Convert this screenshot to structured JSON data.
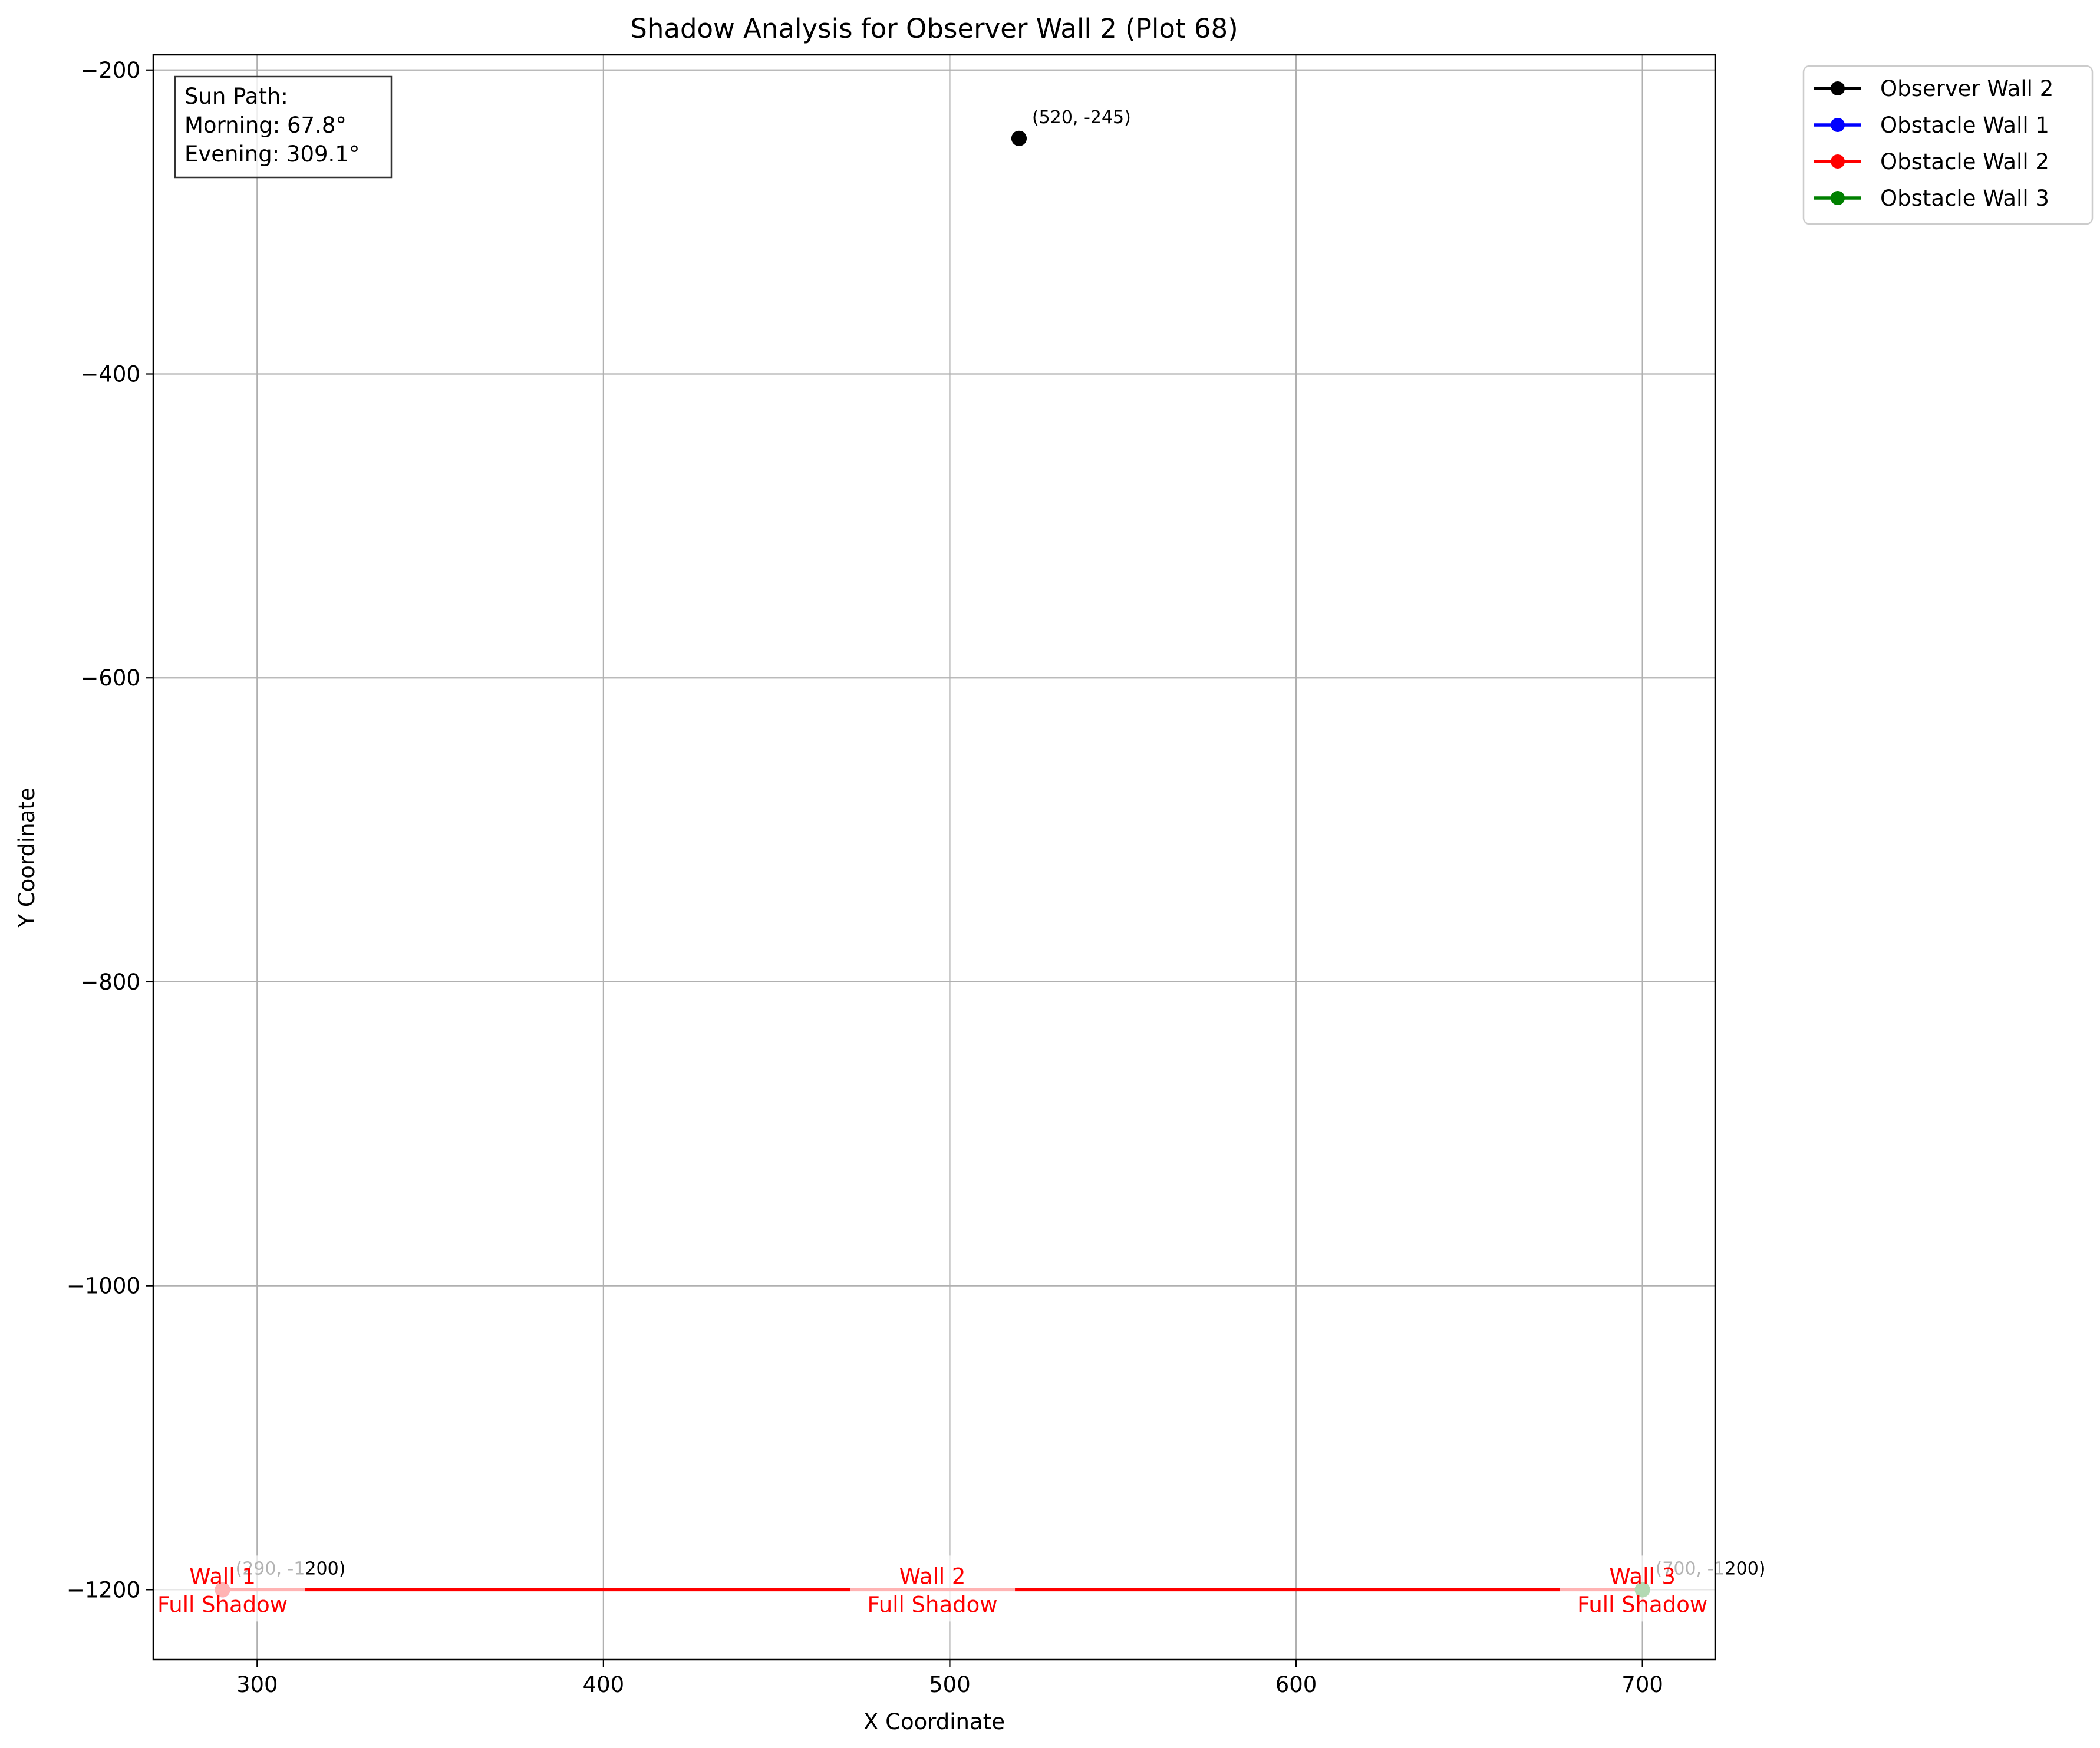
{
  "chart_data": {
    "type": "line",
    "title": "Shadow Analysis for Observer Wall 2 (Plot 68)",
    "xlabel": "X Coordinate",
    "ylabel": "Y Coordinate",
    "xlim": [
      270,
      721
    ],
    "ylim": [
      -1246,
      -190
    ],
    "xticks": [
      300,
      400,
      500,
      600,
      700
    ],
    "yticks": [
      -200,
      -400,
      -600,
      -800,
      -1000,
      -1200
    ],
    "xtick_labels": [
      "300",
      "400",
      "500",
      "600",
      "700"
    ],
    "ytick_labels": [
      "−200",
      "−400",
      "−600",
      "−800",
      "−1000",
      "−1200"
    ],
    "grid": true,
    "legend_position": "outside-top-right",
    "series": [
      {
        "name": "Observer Wall 2",
        "color": "#000000",
        "points": [
          [
            520,
            -245
          ],
          [
            520,
            -245
          ]
        ]
      },
      {
        "name": "Obstacle Wall 1",
        "color": "#0000ff",
        "points": [
          [
            290,
            -1200
          ],
          [
            290,
            -1200
          ]
        ]
      },
      {
        "name": "Obstacle Wall 2",
        "color": "#ff0000",
        "points": [
          [
            290,
            -1200
          ],
          [
            700,
            -1200
          ]
        ]
      },
      {
        "name": "Obstacle Wall 3",
        "color": "#008000",
        "points": [
          [
            700,
            -1200
          ],
          [
            700,
            -1200
          ]
        ]
      }
    ],
    "point_labels": [
      {
        "text": "(520, -245)",
        "x": 520,
        "y": -245
      },
      {
        "text": "(290, -1200)",
        "x": 290,
        "y": -1200
      },
      {
        "text": "(700, -1200)",
        "x": 700,
        "y": -1200
      }
    ],
    "wall_labels": [
      {
        "line1": "Wall 1",
        "line2": "Full Shadow",
        "x": 290,
        "y": -1200
      },
      {
        "line1": "Wall 2",
        "line2": "Full Shadow",
        "x": 495,
        "y": -1200
      },
      {
        "line1": "Wall 3",
        "line2": "Full Shadow",
        "x": 700,
        "y": -1200
      }
    ],
    "wall_label_color": "#ff0000",
    "sun_path": {
      "line1": "Sun Path:",
      "line2": "Morning: 67.8°",
      "line3": "Evening: 309.1°"
    }
  }
}
